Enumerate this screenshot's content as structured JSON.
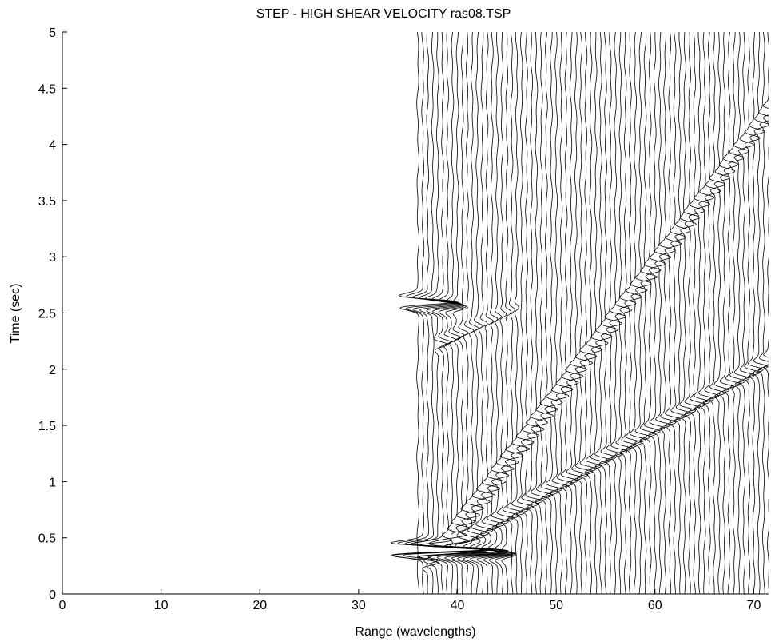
{
  "chart_data": {
    "type": "wiggle",
    "title": "STEP - HIGH SHEAR VELOCITY ras08.TSP",
    "x_label": "Range (wavelengths)",
    "y_label": "Time (sec)",
    "xlim": [
      0,
      71.5
    ],
    "ylim": [
      0,
      5
    ],
    "xticks": [
      0,
      10,
      20,
      30,
      40,
      50,
      60,
      70
    ],
    "yticks": [
      0,
      0.5,
      1,
      1.5,
      2,
      2.5,
      3,
      3.5,
      4,
      4.5,
      5
    ],
    "color": "#000000",
    "trace_x": [
      36,
      36.5,
      37,
      37.5,
      38,
      38.5,
      39,
      39.5,
      40,
      40.5,
      41,
      41.5,
      42,
      42.5,
      43,
      43.5,
      44,
      44.5,
      45,
      45.5,
      46,
      46.5,
      47,
      47.5,
      48,
      48.5,
      49,
      49.5,
      50,
      50.5,
      51,
      51.5,
      52,
      52.5,
      53,
      53.5,
      54,
      54.5,
      55,
      55.5,
      56,
      56.5,
      57,
      57.5,
      58,
      58.5,
      59,
      59.5,
      60,
      60.5,
      61,
      61.5,
      62,
      62.5,
      63,
      63.5,
      64,
      64.5,
      65,
      65.5,
      66,
      66.5,
      67,
      67.5,
      68,
      68.5,
      69,
      69.5,
      70,
      70.5,
      71,
      71.5
    ],
    "events": [
      {
        "x": [
          37,
          72
        ],
        "t": [
          0.28,
          2.1
        ],
        "amplitude": [
          1.2,
          1.0
        ]
      },
      {
        "x": [
          38,
          72
        ],
        "t": [
          0.35,
          4.35
        ],
        "amplitude": [
          1.3,
          1.0
        ]
      },
      {
        "x": [
          38,
          46
        ],
        "t": [
          2.22,
          2.55
        ],
        "amplitude": [
          0.9,
          0.3
        ]
      },
      {
        "x": [
          36.5,
          45
        ],
        "t": [
          0.4,
          0.35
        ],
        "amplitude": [
          7,
          1
        ]
      },
      {
        "x": [
          36,
          40
        ],
        "t": [
          2.6,
          2.55
        ],
        "amplitude": [
          4,
          1
        ]
      }
    ]
  }
}
